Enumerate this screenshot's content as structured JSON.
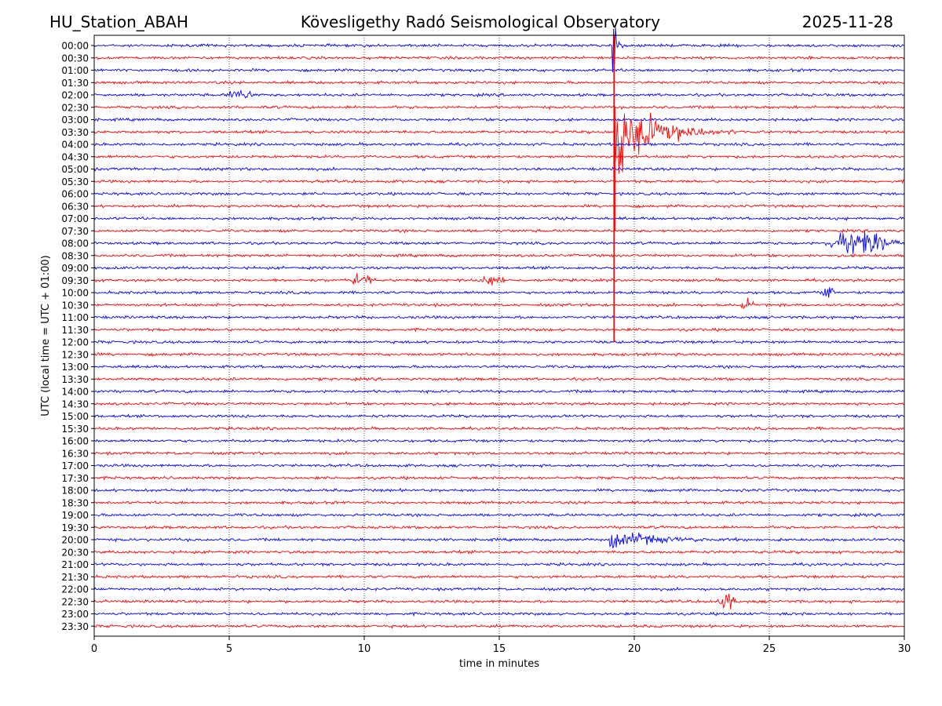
{
  "header": {
    "station": "HU_Station_ABAH",
    "observatory": "Kövesligethy Radó Seismological Observatory",
    "date": "2025-11-28"
  },
  "chart_data": {
    "type": "line",
    "title": "Kövesligethy Radó Seismological Observatory",
    "xlabel": "time in minutes",
    "ylabel": "UTC (local time = UTC + 01:00)",
    "xlim": [
      0,
      30
    ],
    "xticks": [
      "0",
      "5",
      "10",
      "15",
      "20",
      "25",
      "30"
    ],
    "grid": "vertical dotted at every 5 minutes",
    "series_colors": [
      "#0000ff",
      "#ff0000"
    ],
    "rows": [
      "00:00",
      "00:30",
      "01:00",
      "01:30",
      "02:00",
      "02:30",
      "03:00",
      "03:30",
      "04:00",
      "04:30",
      "05:00",
      "05:30",
      "06:00",
      "06:30",
      "07:00",
      "07:30",
      "08:00",
      "08:30",
      "09:00",
      "09:30",
      "10:00",
      "10:30",
      "11:00",
      "11:30",
      "12:00",
      "12:30",
      "13:00",
      "13:30",
      "14:00",
      "14:30",
      "15:00",
      "15:30",
      "16:00",
      "16:30",
      "17:00",
      "17:30",
      "18:00",
      "18:30",
      "19:00",
      "19:30",
      "20:00",
      "20:30",
      "21:00",
      "21:30",
      "22:00",
      "22:30",
      "23:00",
      "23:30"
    ],
    "events": [
      {
        "row": 0,
        "start_min": 19.2,
        "duration_min": 0.4,
        "amplitude": 2.5,
        "kind": "spike-through",
        "extends_to_row": 24
      },
      {
        "row": 7,
        "start_min": 19.25,
        "duration_min": 5.0,
        "amplitude": 2.6,
        "kind": "earthquake"
      },
      {
        "row": 4,
        "start_min": 4.8,
        "duration_min": 1.2,
        "amplitude": 0.35,
        "kind": "burst"
      },
      {
        "row": 16,
        "start_min": 26.9,
        "duration_min": 3.0,
        "amplitude": 0.8,
        "kind": "burst"
      },
      {
        "row": 19,
        "start_min": 9.3,
        "duration_min": 1.2,
        "amplitude": 0.4,
        "kind": "burst"
      },
      {
        "row": 19,
        "start_min": 14.3,
        "duration_min": 1.0,
        "amplitude": 0.35,
        "kind": "burst"
      },
      {
        "row": 20,
        "start_min": 26.9,
        "duration_min": 0.6,
        "amplitude": 0.5,
        "kind": "burst"
      },
      {
        "row": 21,
        "start_min": 23.9,
        "duration_min": 0.6,
        "amplitude": 0.4,
        "kind": "burst"
      },
      {
        "row": 40,
        "start_min": 19.1,
        "duration_min": 6.2,
        "amplitude": 0.6,
        "kind": "earthquake"
      },
      {
        "row": 45,
        "start_min": 23.0,
        "duration_min": 0.8,
        "amplitude": 0.6,
        "kind": "burst"
      }
    ]
  }
}
